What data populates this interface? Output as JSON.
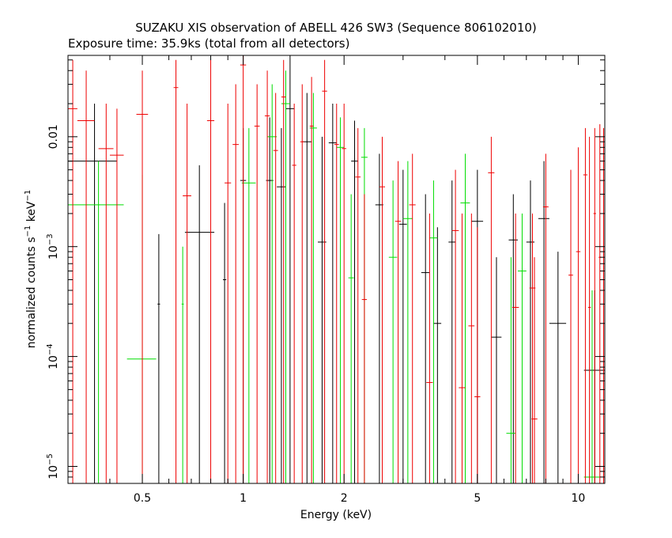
{
  "chart_data": {
    "type": "scatter",
    "title": "SUZAKU XIS observation of ABELL 426 SW3 (Sequence 806102010)",
    "subtitle": "Exposure time: 35.9ks (total from all detectors)",
    "xlabel": "Energy (keV)",
    "ylabel": "normalized counts s⁻¹ keV⁻¹",
    "x_scale": "log",
    "y_scale": "log",
    "xlim": [
      0.3,
      12
    ],
    "ylim": [
      7e-06,
      0.055
    ],
    "x_ticks": [
      {
        "value": 0.5,
        "label": "0.5"
      },
      {
        "value": 1,
        "label": "1"
      },
      {
        "value": 2,
        "label": "2"
      },
      {
        "value": 5,
        "label": "5"
      },
      {
        "value": 10,
        "label": "10"
      }
    ],
    "y_ticks": [
      {
        "value": 1e-05,
        "base": "10",
        "exp": "−5",
        "plain": ""
      },
      {
        "value": 0.0001,
        "base": "10",
        "exp": "−4",
        "plain": ""
      },
      {
        "value": 0.001,
        "base": "10",
        "exp": "−3",
        "plain": ""
      },
      {
        "value": 0.01,
        "base": "",
        "exp": "",
        "plain": "0.01"
      }
    ],
    "grid": false,
    "series": [
      {
        "color": "#000000",
        "points": [
          {
            "x": 0.36,
            "xlo": 0.3,
            "xhi": 0.42,
            "y": 0.006,
            "ylo": 7e-06,
            "yhi": 0.02
          },
          {
            "x": 0.56,
            "xlo": 0.555,
            "xhi": 0.565,
            "y": 0.0003,
            "ylo": 7e-06,
            "yhi": 0.0013
          },
          {
            "x": 0.74,
            "xlo": 0.67,
            "xhi": 0.82,
            "y": 0.00135,
            "ylo": 7e-06,
            "yhi": 0.0055
          },
          {
            "x": 0.88,
            "xlo": 0.87,
            "xhi": 0.89,
            "y": 0.0005,
            "ylo": 7e-06,
            "yhi": 0.0025
          },
          {
            "x": 1.0,
            "xlo": 0.98,
            "xhi": 1.02,
            "y": 0.004,
            "ylo": 7e-06,
            "yhi": 0.012
          },
          {
            "x": 1.2,
            "xlo": 1.17,
            "xhi": 1.23,
            "y": 0.004,
            "ylo": 7e-06,
            "yhi": 0.015
          },
          {
            "x": 1.3,
            "xlo": 1.26,
            "xhi": 1.34,
            "y": 0.0035,
            "ylo": 7e-06,
            "yhi": 0.012
          },
          {
            "x": 1.38,
            "xlo": 1.34,
            "xhi": 1.42,
            "y": 0.018,
            "ylo": 7e-06,
            "yhi": 0.055
          },
          {
            "x": 1.55,
            "xlo": 1.5,
            "xhi": 1.6,
            "y": 0.009,
            "ylo": 7e-06,
            "yhi": 0.025
          },
          {
            "x": 1.72,
            "xlo": 1.67,
            "xhi": 1.77,
            "y": 0.0011,
            "ylo": 7e-06,
            "yhi": 0.01
          },
          {
            "x": 1.85,
            "xlo": 1.8,
            "xhi": 1.9,
            "y": 0.0088,
            "ylo": 7e-06,
            "yhi": 0.02
          },
          {
            "x": 2.15,
            "xlo": 2.1,
            "xhi": 2.2,
            "y": 0.006,
            "ylo": 7e-06,
            "yhi": 0.014
          },
          {
            "x": 2.55,
            "xlo": 2.48,
            "xhi": 2.62,
            "y": 0.0024,
            "ylo": 7e-06,
            "yhi": 0.007
          },
          {
            "x": 3.0,
            "xlo": 2.92,
            "xhi": 3.08,
            "y": 0.0016,
            "ylo": 7e-06,
            "yhi": 0.005
          },
          {
            "x": 3.5,
            "xlo": 3.4,
            "xhi": 3.6,
            "y": 0.00058,
            "ylo": 7e-06,
            "yhi": 0.003
          },
          {
            "x": 3.8,
            "xlo": 3.7,
            "xhi": 3.9,
            "y": 0.0002,
            "ylo": 7e-06,
            "yhi": 0.0015
          },
          {
            "x": 4.2,
            "xlo": 4.1,
            "xhi": 4.3,
            "y": 0.0011,
            "ylo": 7e-06,
            "yhi": 0.004
          },
          {
            "x": 5.0,
            "xlo": 4.8,
            "xhi": 5.2,
            "y": 0.0017,
            "ylo": 7e-06,
            "yhi": 0.005
          },
          {
            "x": 5.7,
            "xlo": 5.5,
            "xhi": 5.9,
            "y": 0.00015,
            "ylo": 7e-06,
            "yhi": 0.0008
          },
          {
            "x": 6.4,
            "xlo": 6.2,
            "xhi": 6.6,
            "y": 0.00115,
            "ylo": 7e-06,
            "yhi": 0.003
          },
          {
            "x": 7.2,
            "xlo": 7.0,
            "xhi": 7.4,
            "y": 0.0011,
            "ylo": 7e-06,
            "yhi": 0.004
          },
          {
            "x": 7.9,
            "xlo": 7.6,
            "xhi": 8.2,
            "y": 0.0018,
            "ylo": 7e-06,
            "yhi": 0.006
          },
          {
            "x": 8.7,
            "xlo": 8.2,
            "xhi": 9.2,
            "y": 0.0002,
            "ylo": 7e-06,
            "yhi": 0.0009
          },
          {
            "x": 11.2,
            "xlo": 10.4,
            "xhi": 12.0,
            "y": 7.5e-05,
            "ylo": 7e-06,
            "yhi": 0.0004
          }
        ]
      },
      {
        "color": "#00dd00",
        "points": [
          {
            "x": 0.37,
            "xlo": 0.3,
            "xhi": 0.44,
            "y": 0.0024,
            "ylo": 7e-06,
            "yhi": 0.006
          },
          {
            "x": 0.5,
            "xlo": 0.45,
            "xhi": 0.55,
            "y": 9.5e-05,
            "ylo": 7e-06,
            "yhi": 0.0045
          },
          {
            "x": 0.66,
            "xlo": 0.655,
            "xhi": 0.665,
            "y": 0.0003,
            "ylo": 7e-06,
            "yhi": 0.001
          },
          {
            "x": 1.04,
            "xlo": 0.99,
            "xhi": 1.09,
            "y": 0.0038,
            "ylo": 7e-06,
            "yhi": 0.012
          },
          {
            "x": 1.22,
            "xlo": 1.18,
            "xhi": 1.26,
            "y": 0.01,
            "ylo": 7e-06,
            "yhi": 0.03
          },
          {
            "x": 1.34,
            "xlo": 1.3,
            "xhi": 1.38,
            "y": 0.02,
            "ylo": 7e-06,
            "yhi": 0.04
          },
          {
            "x": 1.62,
            "xlo": 1.58,
            "xhi": 1.66,
            "y": 0.012,
            "ylo": 7e-06,
            "yhi": 0.025
          },
          {
            "x": 1.95,
            "xlo": 1.9,
            "xhi": 2.0,
            "y": 0.008,
            "ylo": 7e-06,
            "yhi": 0.015
          },
          {
            "x": 2.1,
            "xlo": 2.06,
            "xhi": 2.14,
            "y": 0.00052,
            "ylo": 7e-06,
            "yhi": 0.003
          },
          {
            "x": 2.3,
            "xlo": 2.25,
            "xhi": 2.35,
            "y": 0.0065,
            "ylo": 7e-06,
            "yhi": 0.012
          },
          {
            "x": 2.8,
            "xlo": 2.72,
            "xhi": 2.88,
            "y": 0.0008,
            "ylo": 7e-06,
            "yhi": 0.004
          },
          {
            "x": 3.1,
            "xlo": 3.0,
            "xhi": 3.2,
            "y": 0.0018,
            "ylo": 7e-06,
            "yhi": 0.006
          },
          {
            "x": 3.7,
            "xlo": 3.6,
            "xhi": 3.8,
            "y": 0.0012,
            "ylo": 7e-06,
            "yhi": 0.004
          },
          {
            "x": 4.6,
            "xlo": 4.45,
            "xhi": 4.75,
            "y": 0.0025,
            "ylo": 7e-06,
            "yhi": 0.007
          },
          {
            "x": 6.3,
            "xlo": 6.1,
            "xhi": 6.5,
            "y": 2e-05,
            "ylo": 7e-06,
            "yhi": 0.0008
          },
          {
            "x": 6.8,
            "xlo": 6.6,
            "xhi": 7.0,
            "y": 0.0006,
            "ylo": 7e-06,
            "yhi": 0.002
          },
          {
            "x": 11.0,
            "xlo": 10.4,
            "xhi": 11.6,
            "y": 8e-06,
            "ylo": 7e-06,
            "yhi": 0.0004
          }
        ]
      },
      {
        "color": "#ee0000",
        "points": [
          {
            "x": 0.31,
            "xlo": 0.3,
            "xhi": 0.32,
            "y": 0.018,
            "ylo": 7e-06,
            "yhi": 0.05
          },
          {
            "x": 0.34,
            "xlo": 0.32,
            "xhi": 0.36,
            "y": 0.014,
            "ylo": 7e-06,
            "yhi": 0.04
          },
          {
            "x": 0.39,
            "xlo": 0.37,
            "xhi": 0.41,
            "y": 0.0078,
            "ylo": 7e-06,
            "yhi": 0.02
          },
          {
            "x": 0.42,
            "xlo": 0.4,
            "xhi": 0.44,
            "y": 0.0068,
            "ylo": 7e-06,
            "yhi": 0.018
          },
          {
            "x": 0.5,
            "xlo": 0.48,
            "xhi": 0.52,
            "y": 0.016,
            "ylo": 7e-06,
            "yhi": 0.04
          },
          {
            "x": 0.63,
            "xlo": 0.62,
            "xhi": 0.64,
            "y": 0.028,
            "ylo": 7e-06,
            "yhi": 0.05
          },
          {
            "x": 0.68,
            "xlo": 0.66,
            "xhi": 0.7,
            "y": 0.0029,
            "ylo": 7e-06,
            "yhi": 0.02
          },
          {
            "x": 0.8,
            "xlo": 0.78,
            "xhi": 0.82,
            "y": 0.014,
            "ylo": 7e-06,
            "yhi": 0.05
          },
          {
            "x": 0.9,
            "xlo": 0.88,
            "xhi": 0.92,
            "y": 0.0038,
            "ylo": 7e-06,
            "yhi": 0.02
          },
          {
            "x": 0.95,
            "xlo": 0.93,
            "xhi": 0.97,
            "y": 0.0085,
            "ylo": 7e-06,
            "yhi": 0.03
          },
          {
            "x": 1.0,
            "xlo": 0.98,
            "xhi": 1.02,
            "y": 0.045,
            "ylo": 7e-06,
            "yhi": 0.055
          },
          {
            "x": 1.1,
            "xlo": 1.08,
            "xhi": 1.12,
            "y": 0.0125,
            "ylo": 7e-06,
            "yhi": 0.03
          },
          {
            "x": 1.18,
            "xlo": 1.16,
            "xhi": 1.2,
            "y": 0.0155,
            "ylo": 7e-06,
            "yhi": 0.04
          },
          {
            "x": 1.25,
            "xlo": 1.23,
            "xhi": 1.27,
            "y": 0.0075,
            "ylo": 7e-06,
            "yhi": 0.025
          },
          {
            "x": 1.32,
            "xlo": 1.3,
            "xhi": 1.34,
            "y": 0.023,
            "ylo": 7e-06,
            "yhi": 0.05
          },
          {
            "x": 1.42,
            "xlo": 1.4,
            "xhi": 1.44,
            "y": 0.0055,
            "ylo": 7e-06,
            "yhi": 0.02
          },
          {
            "x": 1.5,
            "xlo": 1.48,
            "xhi": 1.52,
            "y": 0.009,
            "ylo": 7e-06,
            "yhi": 0.03
          },
          {
            "x": 1.6,
            "xlo": 1.58,
            "xhi": 1.62,
            "y": 0.0125,
            "ylo": 7e-06,
            "yhi": 0.035
          },
          {
            "x": 1.75,
            "xlo": 1.72,
            "xhi": 1.78,
            "y": 0.026,
            "ylo": 7e-06,
            "yhi": 0.05
          },
          {
            "x": 1.9,
            "xlo": 1.87,
            "xhi": 1.93,
            "y": 0.0085,
            "ylo": 7e-06,
            "yhi": 0.02
          },
          {
            "x": 2.0,
            "xlo": 1.97,
            "xhi": 2.03,
            "y": 0.0078,
            "ylo": 7e-06,
            "yhi": 0.02
          },
          {
            "x": 2.2,
            "xlo": 2.16,
            "xhi": 2.24,
            "y": 0.0043,
            "ylo": 7e-06,
            "yhi": 0.012
          },
          {
            "x": 2.3,
            "xlo": 2.26,
            "xhi": 2.34,
            "y": 0.00033,
            "ylo": 7e-06,
            "yhi": 0.003
          },
          {
            "x": 2.6,
            "xlo": 2.55,
            "xhi": 2.65,
            "y": 0.0035,
            "ylo": 7e-06,
            "yhi": 0.01
          },
          {
            "x": 2.9,
            "xlo": 2.84,
            "xhi": 2.96,
            "y": 0.0017,
            "ylo": 7e-06,
            "yhi": 0.006
          },
          {
            "x": 3.2,
            "xlo": 3.13,
            "xhi": 3.27,
            "y": 0.0024,
            "ylo": 7e-06,
            "yhi": 0.007
          },
          {
            "x": 3.6,
            "xlo": 3.52,
            "xhi": 3.68,
            "y": 5.8e-05,
            "ylo": 7e-06,
            "yhi": 0.002
          },
          {
            "x": 4.3,
            "xlo": 4.2,
            "xhi": 4.4,
            "y": 0.0014,
            "ylo": 7e-06,
            "yhi": 0.005
          },
          {
            "x": 4.5,
            "xlo": 4.4,
            "xhi": 4.6,
            "y": 5.2e-05,
            "ylo": 7e-06,
            "yhi": 0.002
          },
          {
            "x": 4.8,
            "xlo": 4.7,
            "xhi": 4.9,
            "y": 0.00019,
            "ylo": 7e-06,
            "yhi": 0.002
          },
          {
            "x": 5.0,
            "xlo": 4.9,
            "xhi": 5.1,
            "y": 4.3e-05,
            "ylo": 7e-06,
            "yhi": 0.0015
          },
          {
            "x": 5.5,
            "xlo": 5.38,
            "xhi": 5.62,
            "y": 0.0047,
            "ylo": 7e-06,
            "yhi": 0.01
          },
          {
            "x": 6.5,
            "xlo": 6.35,
            "xhi": 6.65,
            "y": 0.00028,
            "ylo": 7e-06,
            "yhi": 0.002
          },
          {
            "x": 7.3,
            "xlo": 7.15,
            "xhi": 7.45,
            "y": 0.00042,
            "ylo": 7e-06,
            "yhi": 0.002
          },
          {
            "x": 7.4,
            "xlo": 7.25,
            "xhi": 7.55,
            "y": 2.7e-05,
            "ylo": 7e-06,
            "yhi": 0.0008
          },
          {
            "x": 8.0,
            "xlo": 7.85,
            "xhi": 8.15,
            "y": 0.0023,
            "ylo": 7e-06,
            "yhi": 0.007
          },
          {
            "x": 9.5,
            "xlo": 9.35,
            "xhi": 9.65,
            "y": 0.00055,
            "ylo": 7e-06,
            "yhi": 0.005
          },
          {
            "x": 10.0,
            "xlo": 9.85,
            "xhi": 10.15,
            "y": 0.0009,
            "ylo": 7e-06,
            "yhi": 0.008
          },
          {
            "x": 10.5,
            "xlo": 10.35,
            "xhi": 10.65,
            "y": 0.0045,
            "ylo": 7e-06,
            "yhi": 0.012
          },
          {
            "x": 10.8,
            "xlo": 10.7,
            "xhi": 10.9,
            "y": 0.00028,
            "ylo": 7e-06,
            "yhi": 0.01
          },
          {
            "x": 11.2,
            "xlo": 11.1,
            "xhi": 11.3,
            "y": 0.002,
            "ylo": 7e-06,
            "yhi": 0.012
          },
          {
            "x": 11.6,
            "xlo": 11.5,
            "xhi": 11.7,
            "y": 0.0008,
            "ylo": 7e-06,
            "yhi": 0.013
          },
          {
            "x": 11.9,
            "xlo": 11.85,
            "xhi": 11.95,
            "y": 0.003,
            "ylo": 7e-06,
            "yhi": 0.012
          }
        ]
      }
    ]
  }
}
